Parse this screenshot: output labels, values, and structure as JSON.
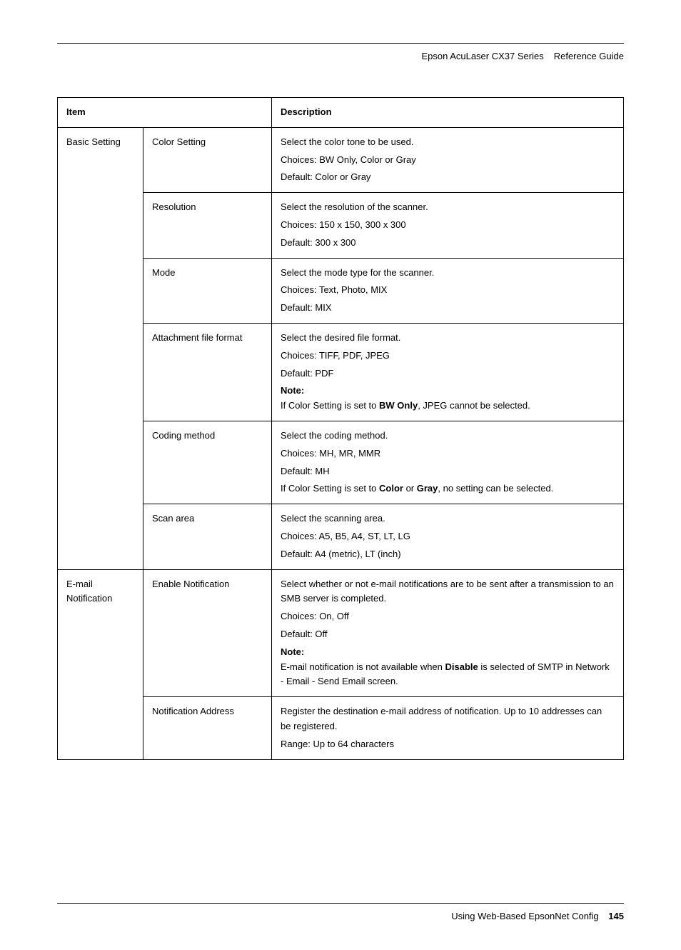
{
  "header": {
    "product": "Epson AcuLaser CX37 Series",
    "doc_type": "Reference Guide"
  },
  "table": {
    "headers": {
      "item": "Item",
      "description": "Description"
    },
    "groups": [
      {
        "label": "Basic Setting",
        "rows": [
          {
            "sub": "Color Setting",
            "lines": [
              "Select the color tone to be used.",
              "Choices: BW Only, Color or Gray",
              "Default: Color or Gray"
            ]
          },
          {
            "sub": "Resolution",
            "lines": [
              "Select the resolution of the scanner.",
              "Choices: 150 x 150, 300 x 300",
              "Default: 300 x 300"
            ]
          },
          {
            "sub": "Mode",
            "lines": [
              "Select the mode type for the scanner.",
              "Choices: Text, Photo, MIX",
              "Default: MIX"
            ]
          },
          {
            "sub": "Attachment file format",
            "lines": [
              "Select the desired file format.",
              "Choices: TIFF, PDF, JPEG",
              "Default: PDF"
            ],
            "note_label": "Note:",
            "note_html": "If Color Setting is set to <b>BW Only</b>, JPEG cannot be selected."
          },
          {
            "sub": "Coding method",
            "lines": [
              "Select the coding method.",
              "Choices: MH, MR, MMR",
              "Default: MH"
            ],
            "trailing_html": "If Color Setting is set to <b>Color</b> or <b>Gray</b>, no setting can be selected."
          },
          {
            "sub": "Scan area",
            "lines": [
              "Select the scanning area.",
              "Choices: A5, B5, A4, ST, LT, LG",
              "Default: A4 (metric), LT (inch)"
            ]
          }
        ]
      },
      {
        "label": "E-mail Notification",
        "rows": [
          {
            "sub": "Enable Notification",
            "lines": [
              "Select whether or not e-mail notifications are to be sent after a transmission to an SMB server is completed.",
              "Choices: On, Off",
              "Default: Off"
            ],
            "note_label": "Note:",
            "note_html": "E-mail notification is not available when <b>Disable</b> is selected of SMTP in Network - Email - Send Email screen."
          },
          {
            "sub": "Notification Address",
            "lines": [
              "Register the destination e-mail address of notification. Up to 10 addresses can be registered.",
              "Range: Up to 64 characters"
            ]
          }
        ]
      }
    ]
  },
  "footer": {
    "section": "Using Web-Based EpsonNet Config",
    "page": "145"
  }
}
